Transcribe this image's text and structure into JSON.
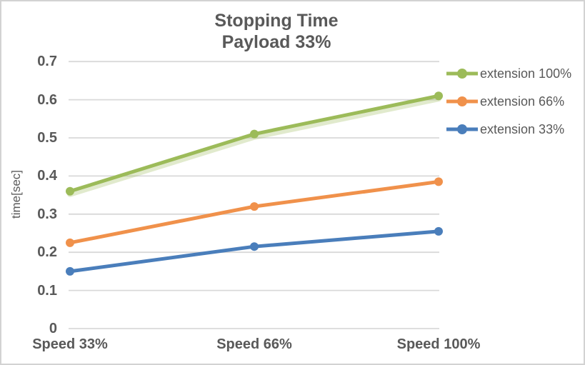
{
  "frame": {
    "background": "#FFFFFF",
    "border_color": "#D2D2D2"
  },
  "chart_data": {
    "type": "line",
    "title": "Stopping Time",
    "subtitle": "Payload 33%",
    "xlabel": "",
    "ylabel": "time[sec]",
    "categories": [
      "Speed 33%",
      "Speed 66%",
      "Speed 100%"
    ],
    "series": [
      {
        "name": "extension 100%",
        "color": "#9CBB59",
        "values": [
          0.36,
          0.51,
          0.61
        ],
        "glow": true
      },
      {
        "name": "extension 66%",
        "color": "#F0914B",
        "values": [
          0.225,
          0.32,
          0.385
        ],
        "glow": false
      },
      {
        "name": "extension 33%",
        "color": "#4A7EBB",
        "values": [
          0.15,
          0.215,
          0.255
        ],
        "glow": false
      }
    ],
    "ylim": [
      0,
      0.7
    ],
    "y_ticks": [
      0,
      0.1,
      0.2,
      0.3,
      0.4,
      0.5,
      0.6,
      0.7
    ],
    "y_tick_labels": [
      "0",
      "0.1",
      "0.2",
      "0.3",
      "0.4",
      "0.5",
      "0.6",
      "0.7"
    ],
    "grid": true,
    "grid_color": "#D9D9D9",
    "text_color": "#595959",
    "legend_position": "right",
    "marker": "circle"
  }
}
